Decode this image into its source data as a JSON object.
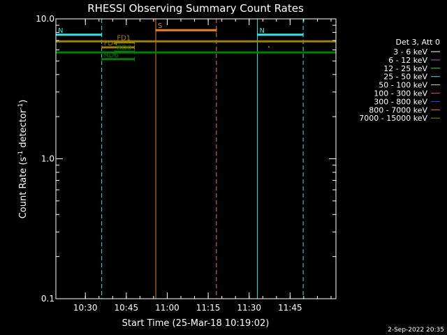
{
  "chart_data": {
    "type": "line",
    "title": "RHESSI Observing Summary Count Rates",
    "xlabel": "Start Time (25-Mar-18 10:19:02)",
    "ylabel_main": "Count Rate (s",
    "ylabel_sup1": "-1",
    "ylabel_mid": " detector",
    "ylabel_sup2": "-1",
    "ylabel_end": ")",
    "yscale": "log",
    "ylim": [
      0.1,
      10.0
    ],
    "y_ticks": [
      {
        "value": 10.0,
        "label": "10.0"
      },
      {
        "value": 1.0,
        "label": "1.0"
      },
      {
        "value": 0.1,
        "label": "0.1"
      }
    ],
    "xlim_minutes": [
      10.32,
      12.03
    ],
    "x_ticks": [
      {
        "minute": 10.5,
        "label": "10:30"
      },
      {
        "minute": 10.75,
        "label": "10:45"
      },
      {
        "minute": 11.0,
        "label": "11:00"
      },
      {
        "minute": 11.25,
        "label": "11:15"
      },
      {
        "minute": 11.5,
        "label": "11:30"
      },
      {
        "minute": 11.75,
        "label": "11:45"
      }
    ],
    "legend_title": "Det 3, Att 0",
    "legend": [
      {
        "label": "3 - 6 keV",
        "color": "#ffffff"
      },
      {
        "label": "6 - 12 keV",
        "color": "#e040e0"
      },
      {
        "label": "12 - 25 keV",
        "color": "#40e040"
      },
      {
        "label": "25 - 50 keV",
        "color": "#40e0e0"
      },
      {
        "label": "50 - 100 keV",
        "color": "#e0e040"
      },
      {
        "label": "100 - 300 keV",
        "color": "#e04040"
      },
      {
        "label": "300 - 800 keV",
        "color": "#4040e0"
      },
      {
        "label": "800 - 7000 keV",
        "color": "#f08020"
      },
      {
        "label": "7000 - 15000 keV",
        "color": "#a08000"
      }
    ],
    "flags": [
      {
        "label": "N",
        "color": "#40e0e0",
        "y": 7.7,
        "start": 10.32,
        "end": 10.6
      },
      {
        "label": "N",
        "color": "#40e0e0",
        "y": 7.7,
        "start": 11.55,
        "end": 11.83
      },
      {
        "label": "S",
        "color": "#f08020",
        "y": 8.3,
        "start": 10.93,
        "end": 11.3
      },
      {
        "label": "FD1",
        "color": "#a08000",
        "y": 6.8,
        "start": 10.68,
        "end": 10.8
      },
      {
        "label": "FD4",
        "color": "#a08000",
        "y": 6.25,
        "start": 10.6,
        "end": 10.8
      },
      {
        "label": "RD0",
        "color": "#008000",
        "y": 5.8,
        "start": 10.68,
        "end": 10.8
      },
      {
        "label": "RD6",
        "color": "#008000",
        "y": 5.15,
        "start": 10.6,
        "end": 10.8
      }
    ],
    "series": [
      {
        "color": "#a08000",
        "y": 6.9,
        "start": 10.32,
        "end": 12.03
      },
      {
        "color": "#008000",
        "y": 5.75,
        "start": 10.32,
        "end": 12.03
      }
    ],
    "markers": [
      {
        "color": "#a08000",
        "x": 11.62,
        "y": 6.3
      }
    ],
    "vlines": [
      {
        "minute": 10.32,
        "color": "#40e0e0",
        "style": "solid"
      },
      {
        "minute": 10.6,
        "color": "#40e0e0",
        "style": "dashed"
      },
      {
        "minute": 10.93,
        "color": "#f08020",
        "style": "solid"
      },
      {
        "minute": 11.3,
        "color": "#f08020",
        "style": "dashed"
      },
      {
        "minute": 11.55,
        "color": "#40e0e0",
        "style": "solid"
      },
      {
        "minute": 11.83,
        "color": "#40e0e0",
        "style": "dashed"
      }
    ]
  },
  "footer": {
    "timestamp": "2-Sep-2022 20:35"
  }
}
